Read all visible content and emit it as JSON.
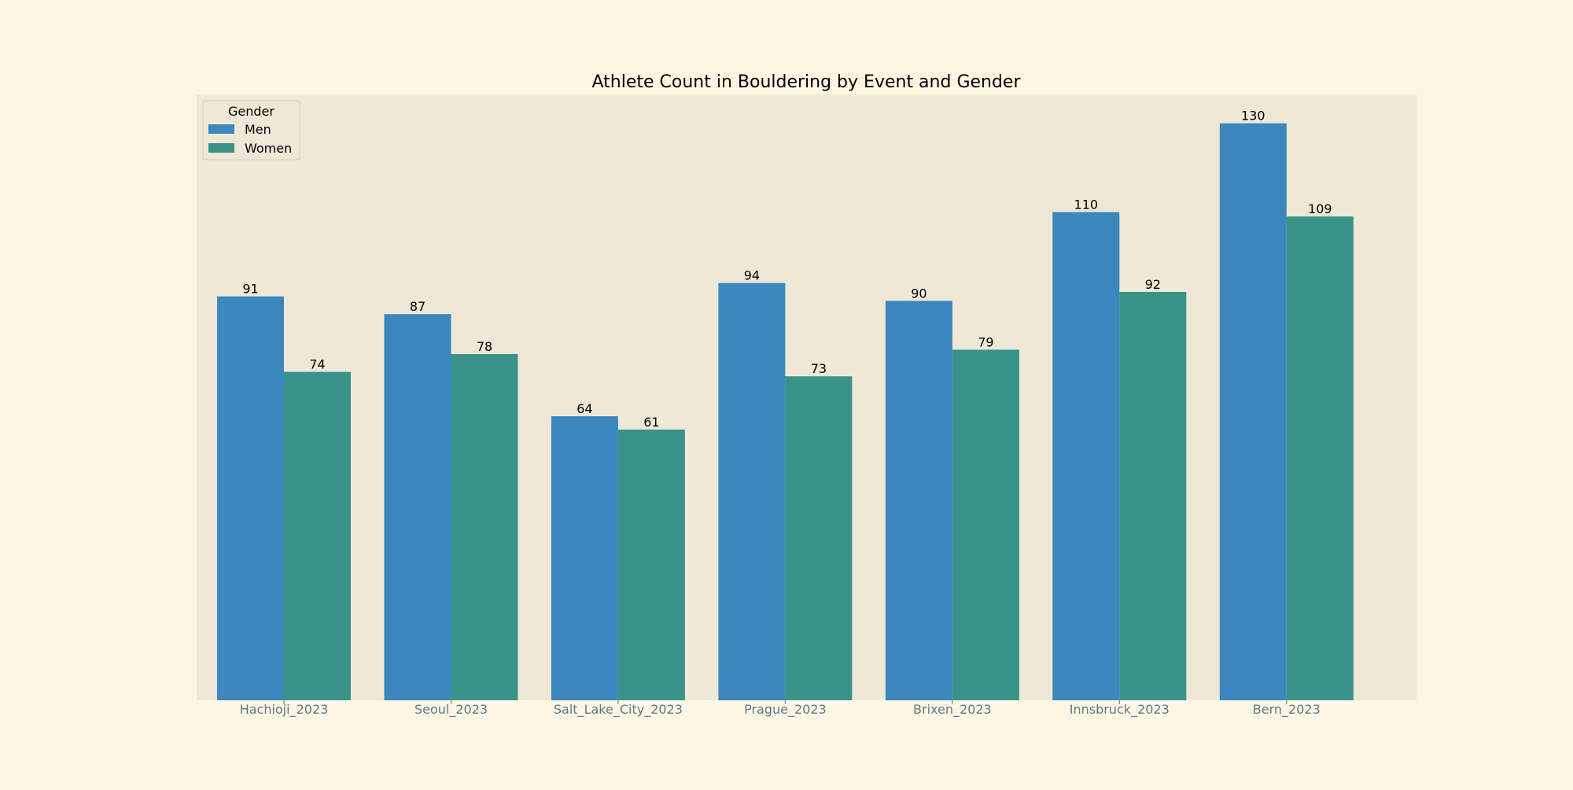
{
  "chart_data": {
    "type": "bar",
    "title": "Athlete Count in Bouldering by Event and Gender",
    "xlabel": "",
    "ylabel": "",
    "categories": [
      "Hachioji_2023",
      "Seoul_2023",
      "Salt_Lake_City_2023",
      "Prague_2023",
      "Brixen_2023",
      "Innsbruck_2023",
      "Bern_2023"
    ],
    "series": [
      {
        "name": "Men",
        "values": [
          91,
          87,
          64,
          94,
          90,
          110,
          130
        ],
        "color": "#3c87bd"
      },
      {
        "name": "Women",
        "values": [
          74,
          78,
          61,
          73,
          79,
          92,
          109
        ],
        "color": "#3a938b"
      }
    ],
    "ylim": [
      0,
      136.5
    ],
    "grid": false,
    "legend": {
      "title": "Gender",
      "placement": "top-left"
    },
    "colors": {
      "page_background": "#fdf6e3",
      "plot_background": "#efe8d7",
      "tick_label": "#5f7a87"
    }
  }
}
